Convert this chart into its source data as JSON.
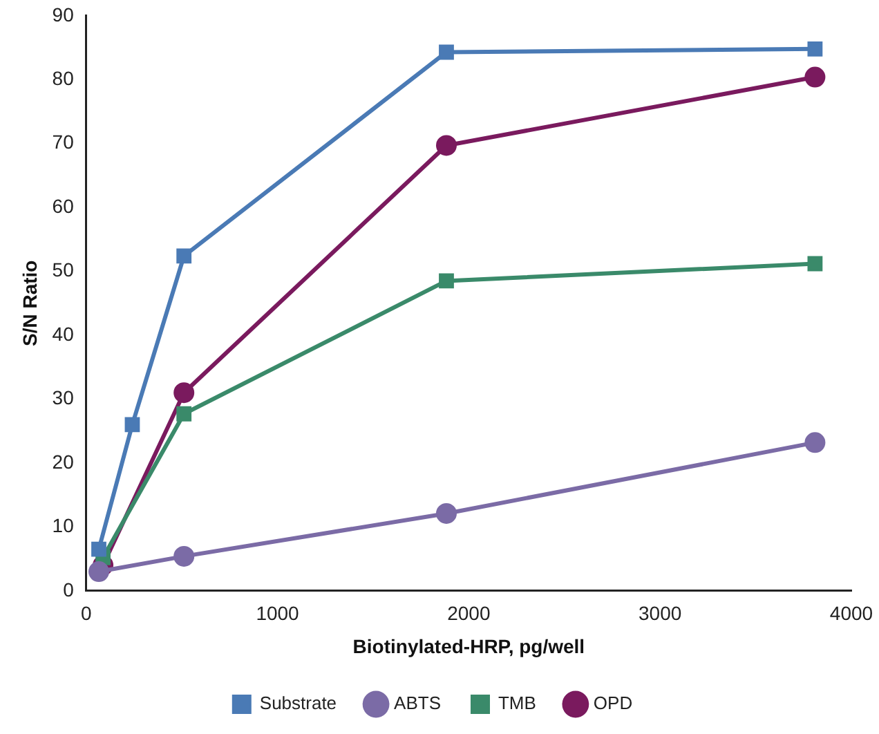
{
  "chart_data": {
    "type": "line",
    "xlabel": "Biotinylated-HRP, pg/well",
    "ylabel": "S/N Ratio",
    "xlim": [
      0,
      4000
    ],
    "xticks": [
      0,
      1000,
      2000,
      3000,
      4000
    ],
    "ylim": [
      0,
      90
    ],
    "yticks": [
      0,
      10,
      20,
      30,
      40,
      50,
      60,
      70,
      80,
      90
    ],
    "grid": false,
    "legend": "bottom",
    "series": [
      {
        "name": "Substrate",
        "color": "#4a7ab5",
        "marker": "square",
        "x": [
          66,
          241,
          511,
          1883,
          3810
        ],
        "values": [
          6.5,
          26,
          52.4,
          84.3,
          84.8
        ]
      },
      {
        "name": "ABTS",
        "color": "#7b6ba6",
        "marker": "circle",
        "x": [
          66,
          511,
          1883,
          3810
        ],
        "values": [
          3,
          5.4,
          12.1,
          23.2
        ]
      },
      {
        "name": "TMB",
        "color": "#3a8a6a",
        "marker": "square",
        "x": [
          88,
          511,
          1883,
          3810
        ],
        "values": [
          5.2,
          27.7,
          48.5,
          51.2
        ]
      },
      {
        "name": "OPD",
        "color": "#7a1a5e",
        "marker": "circle",
        "x": [
          88,
          511,
          1883,
          3810
        ],
        "values": [
          4,
          31,
          69.7,
          80.4
        ]
      }
    ]
  }
}
